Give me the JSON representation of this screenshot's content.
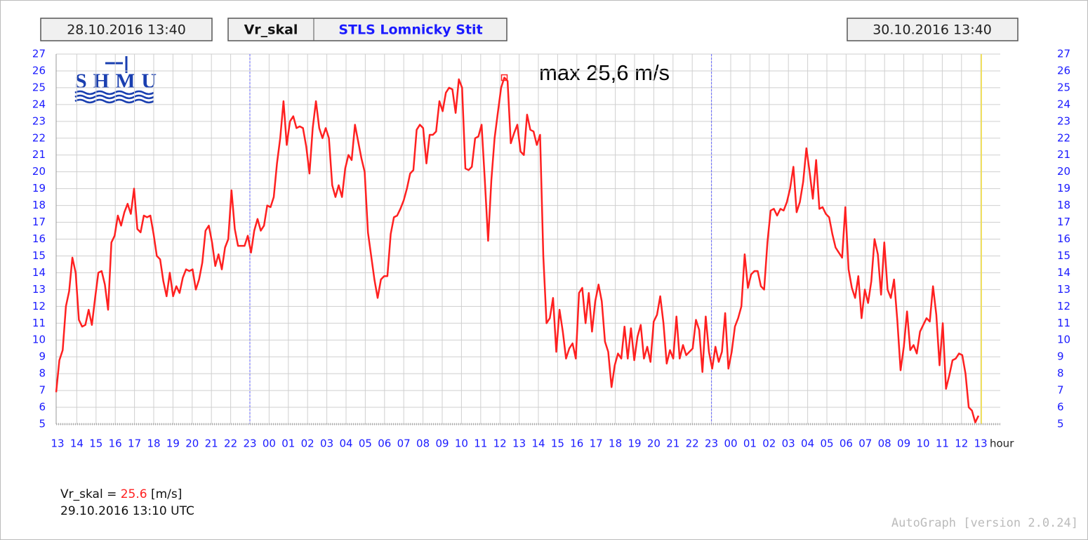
{
  "header": {
    "start": "28.10.2016 13:40",
    "variable": "Vr_skal",
    "station": "STLS Lomnicky Stit",
    "end": "30.10.2016 13:40"
  },
  "logo": "SHMU",
  "chart_data": {
    "type": "line",
    "x_tick_labels": [
      "13",
      "14",
      "15",
      "16",
      "17",
      "18",
      "19",
      "20",
      "21",
      "22",
      "23",
      "00",
      "01",
      "02",
      "03",
      "04",
      "05",
      "06",
      "07",
      "08",
      "09",
      "10",
      "11",
      "12",
      "13",
      "14",
      "15",
      "16",
      "17",
      "18",
      "19",
      "20",
      "21",
      "22",
      "23",
      "00",
      "01",
      "02",
      "03",
      "04",
      "05",
      "06",
      "07",
      "08",
      "09",
      "10",
      "11",
      "12",
      "13"
    ],
    "x_label": "hour",
    "ylim": [
      5,
      27
    ],
    "yticks": [
      5,
      6,
      7,
      8,
      9,
      10,
      11,
      12,
      13,
      14,
      15,
      16,
      17,
      18,
      19,
      20,
      21,
      22,
      23,
      24,
      25,
      26,
      27
    ],
    "grid": true,
    "annotation": "max 25,6 m/s",
    "series": [
      {
        "name": "Vr_skal",
        "color": "#ff2020",
        "values": [
          6.9,
          8.8,
          9.4,
          12,
          12.9,
          14.9,
          14,
          11.2,
          10.8,
          10.9,
          11.8,
          10.9,
          12.5,
          14,
          14.1,
          13.3,
          11.8,
          15.8,
          16.2,
          17.4,
          16.8,
          17.6,
          18.1,
          17.5,
          19,
          16.6,
          16.4,
          17.4,
          17.3,
          17.4,
          16.3,
          15,
          14.8,
          13.5,
          12.6,
          14,
          12.6,
          13.2,
          12.8,
          13.7,
          14.2,
          14.1,
          14.2,
          13,
          13.6,
          14.6,
          16.5,
          16.8,
          15.8,
          14.4,
          15.1,
          14.2,
          15.5,
          16,
          18.9,
          16.6,
          15.6,
          15.6,
          15.6,
          16.2,
          15.2,
          16.5,
          17.2,
          16.5,
          16.8,
          18,
          17.9,
          18.5,
          20.5,
          22,
          24.2,
          21.6,
          23,
          23.3,
          22.6,
          22.7,
          22.6,
          21.5,
          19.9,
          22.6,
          24.2,
          22.6,
          22,
          22.6,
          22,
          19.2,
          18.5,
          19.2,
          18.5,
          20.2,
          21,
          20.7,
          22.8,
          21.8,
          20.8,
          20,
          16.4,
          15,
          13.6,
          12.5,
          13.6,
          13.8,
          13.8,
          16.3,
          17.3,
          17.4,
          17.8,
          18.3,
          19,
          19.9,
          20.1,
          22.5,
          22.8,
          22.6,
          20.5,
          22.2,
          22.2,
          22.4,
          24.2,
          23.6,
          24.7,
          25,
          24.9,
          23.5,
          25.5,
          25,
          20.2,
          20.1,
          20.3,
          22,
          22.1,
          22.8,
          19.5,
          15.9,
          19.5,
          22,
          23.5,
          25,
          25.6,
          25.4,
          21.7,
          22.3,
          22.8,
          21.2,
          21,
          23.4,
          22.5,
          22.4,
          21.6,
          22.2,
          15,
          11,
          11.3,
          12.5,
          9.3,
          11.8,
          10.5,
          8.9,
          9.5,
          9.8,
          8.9,
          12.8,
          13.1,
          11,
          12.8,
          10.5,
          12.3,
          13.3,
          12.3,
          9.9,
          9.3,
          7.2,
          8.5,
          9.2,
          8.9,
          10.8,
          8.9,
          10.7,
          8.8,
          10.2,
          10.9,
          8.9,
          9.6,
          8.7,
          11.1,
          11.5,
          12.6,
          11,
          8.6,
          9.4,
          8.9,
          11.4,
          8.9,
          9.7,
          9.1,
          9.3,
          9.5,
          11.2,
          10.6,
          8.1,
          11.4,
          9.3,
          8.3,
          9.6,
          8.7,
          9.3,
          11.6,
          8.3,
          9.3,
          10.8,
          11.3,
          12,
          15.1,
          13.1,
          13.9,
          14.1,
          14.1,
          13.2,
          13,
          15.8,
          17.7,
          17.8,
          17.4,
          17.8,
          17.7,
          18.2,
          19,
          20.3,
          17.6,
          18.2,
          19.4,
          21.4,
          20,
          18.4,
          20.7,
          17.8,
          17.9,
          17.5,
          17.3,
          16.3,
          15.5,
          15.2,
          14.9,
          17.9,
          14.2,
          13.1,
          12.5,
          13.8,
          11.3,
          13,
          12.2,
          13.5,
          16,
          15.1,
          12.7,
          15.8,
          13,
          12.5,
          13.6,
          11.2,
          8.2,
          9.6,
          11.7,
          9.4,
          9.7,
          9.2,
          10.5,
          10.9,
          11.3,
          11.1,
          13.2,
          11.5,
          8.5,
          11,
          7.1,
          7.9,
          8.8,
          8.9,
          9.2,
          9.1,
          8,
          6,
          5.8,
          5.1,
          5.5
        ]
      }
    ]
  },
  "readout": {
    "label": "Vr_skal =",
    "value": 25.6,
    "unit": "[m/s]",
    "time": "29.10.2016 13:10 UTC"
  },
  "credit": "AutoGraph [version 2.0.24]"
}
